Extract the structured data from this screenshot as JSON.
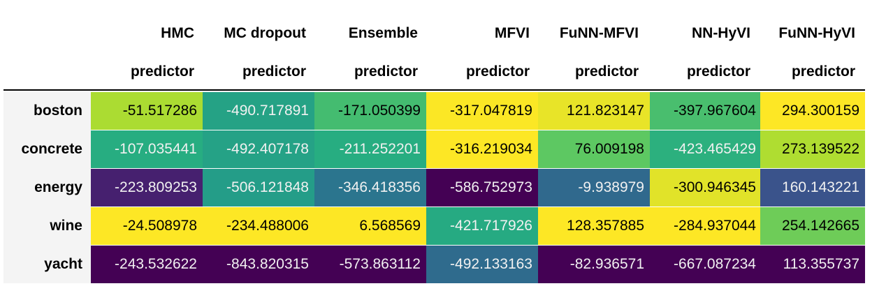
{
  "chart_data": {
    "type": "table",
    "columns": [
      [
        "HMC",
        "predictor"
      ],
      [
        "MC dropout",
        "predictor"
      ],
      [
        "Ensemble",
        "predictor"
      ],
      [
        "MFVI",
        "predictor"
      ],
      [
        "FuNN-MFVI",
        "predictor"
      ],
      [
        "NN-HyVI",
        "predictor"
      ],
      [
        "FuNN-HyVI",
        "predictor"
      ]
    ],
    "rows": [
      "boston",
      "concrete",
      "energy",
      "wine",
      "yacht"
    ],
    "display": [
      [
        "-51.517286",
        "-490.717891",
        "-171.050399",
        "-317.047819",
        "121.823147",
        "-397.967604",
        "294.300159"
      ],
      [
        "-107.035441",
        "-492.407178",
        "-211.252201",
        "-316.219034",
        "76.009198",
        "-423.465429",
        "273.139522"
      ],
      [
        "-223.809253",
        "-506.121848",
        "-346.418356",
        "-586.752973",
        "-9.938979",
        "-300.946345",
        "160.143221"
      ],
      [
        "-24.508978",
        "-234.488006",
        "6.568569",
        "-421.717926",
        "128.357885",
        "-284.937044",
        "254.142665"
      ],
      [
        "-243.532622",
        "-843.820315",
        "-573.863112",
        "-492.133163",
        "-82.936571",
        "-667.087234",
        "113.355737"
      ]
    ],
    "values": [
      [
        -51.517286,
        -490.717891,
        -171.050399,
        -317.047819,
        121.823147,
        -397.967604,
        294.300159
      ],
      [
        -107.035441,
        -492.407178,
        -211.252201,
        -316.219034,
        76.009198,
        -423.465429,
        273.139522
      ],
      [
        -223.809253,
        -506.121848,
        -346.418356,
        -586.752973,
        -9.938979,
        -300.946345,
        160.143221
      ],
      [
        -24.508978,
        -234.488006,
        6.568569,
        -421.717926,
        128.357885,
        -284.937044,
        254.142665
      ],
      [
        -243.532622,
        -843.820315,
        -573.863112,
        -492.133163,
        -82.936571,
        -667.087234,
        113.355737
      ]
    ],
    "colormap": "viridis",
    "color_scale": "per-column"
  }
}
